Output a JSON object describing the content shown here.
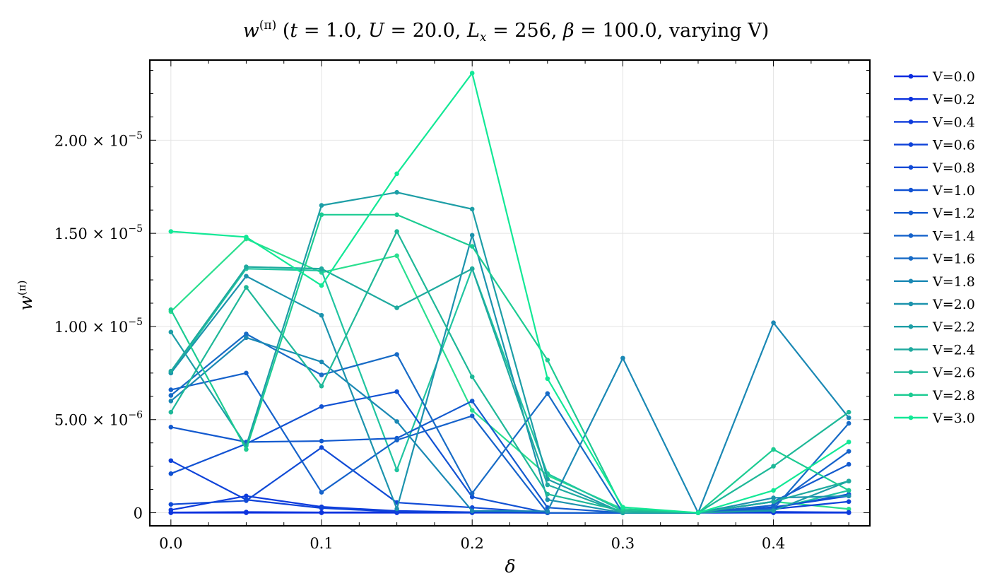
{
  "chart_data": {
    "type": "line",
    "title": "w^{(π)} (t = 1.0, U = 20.0, L_x = 256, β = 100.0, varying V)",
    "title_parts": {
      "w": "w",
      "sup": "(π)",
      "open": " (",
      "t": "t",
      "t_val": " = 1.0, ",
      "U": "U",
      "U_val": " = 20.0, ",
      "L": "L",
      "L_sub": "x",
      "L_val": " = 256, ",
      "beta": "β",
      "beta_val": " = 100.0, varying V)"
    },
    "xlabel": "δ",
    "ylabel": "w^{(π)}",
    "ylabel_parts": {
      "w": "w",
      "sup": "(π)"
    },
    "xlim": [
      -0.014,
      0.464
    ],
    "ylim": [
      -7e-07,
      2.43e-05
    ],
    "grid": true,
    "legend_position": "outside-right",
    "x_ticks": [
      {
        "value": 0.0,
        "label": "0.0"
      },
      {
        "value": 0.1,
        "label": "0.1"
      },
      {
        "value": 0.2,
        "label": "0.2"
      },
      {
        "value": 0.3,
        "label": "0.3"
      },
      {
        "value": 0.4,
        "label": "0.4"
      }
    ],
    "y_ticks": [
      {
        "value": 0,
        "mantissa": "0",
        "exp": ""
      },
      {
        "value": 5e-06,
        "mantissa": "5.00 × 10",
        "exp": "−6"
      },
      {
        "value": 1e-05,
        "mantissa": "1.00 × 10",
        "exp": "−5"
      },
      {
        "value": 1.5e-05,
        "mantissa": "1.50 × 10",
        "exp": "−5"
      },
      {
        "value": 2e-05,
        "mantissa": "2.00 × 10",
        "exp": "−5"
      }
    ],
    "x": [
      0.0,
      0.05,
      0.1,
      0.15,
      0.2,
      0.25,
      0.3,
      0.35,
      0.4,
      0.45
    ],
    "series": [
      {
        "name": "V=0.0",
        "color": "#0a2be0",
        "values": [
          0,
          0,
          0,
          0,
          0,
          0,
          0,
          0,
          0,
          0
        ]
      },
      {
        "name": "V=0.2",
        "color": "#0c33de",
        "values": [
          2e-08,
          4e-08,
          2e-08,
          3e-08,
          2e-08,
          0,
          0,
          0,
          1e-08,
          2e-08
        ]
      },
      {
        "name": "V=0.4",
        "color": "#0d3bdc",
        "values": [
          1.5e-07,
          9e-07,
          3.2e-07,
          1e-07,
          3e-08,
          0,
          0,
          0,
          5e-08,
          2e-08
        ]
      },
      {
        "name": "V=0.6",
        "color": "#0e42d9",
        "values": [
          2.8e-06,
          7e-07,
          2.5e-07,
          6e-08,
          1e-08,
          0,
          0,
          0,
          2e-07,
          6e-07
        ]
      },
      {
        "name": "V=0.8",
        "color": "#104ad6",
        "values": [
          4.5e-07,
          6.5e-07,
          3.5e-06,
          5.5e-07,
          2.8e-07,
          0,
          0,
          0,
          3e-07,
          9e-07
        ]
      },
      {
        "name": "V=1.0",
        "color": "#1152d3",
        "values": [
          2.1e-06,
          3.7e-06,
          5.7e-06,
          6.5e-06,
          8.5e-07,
          0,
          0,
          0,
          2.5e-07,
          1e-06
        ]
      },
      {
        "name": "V=1.2",
        "color": "#135acf",
        "values": [
          4.6e-06,
          3.8e-06,
          3.85e-06,
          4e-06,
          6e-06,
          2.8e-07,
          0,
          0,
          6e-07,
          2.6e-06
        ]
      },
      {
        "name": "V=1.4",
        "color": "#1562cb",
        "values": [
          6.6e-06,
          7.5e-06,
          1.1e-06,
          3.9e-06,
          5.2e-06,
          0,
          0,
          0,
          4e-07,
          3.3e-06
        ]
      },
      {
        "name": "V=1.6",
        "color": "#176bc6",
        "values": [
          6.3e-06,
          9.6e-06,
          7.4e-06,
          8.5e-06,
          1.05e-06,
          6.4e-06,
          0,
          0,
          2e-07,
          4.8e-06
        ]
      },
      {
        "name": "V=1.8",
        "color": "#1a88b4",
        "values": [
          6e-06,
          9.4e-06,
          8.1e-06,
          4.9e-06,
          1e-07,
          8e-08,
          8.3e-06,
          0,
          1.02e-05,
          5.1e-06
        ]
      },
      {
        "name": "V=2.0",
        "color": "#1c93ad",
        "values": [
          7.5e-06,
          1.27e-05,
          1.06e-05,
          2.1e-07,
          1.49e-05,
          7e-07,
          0,
          0,
          8e-07,
          9e-07
        ]
      },
      {
        "name": "V=2.2",
        "color": "#1d9ea6",
        "values": [
          9.7e-06,
          3.6e-06,
          1.65e-05,
          1.72e-05,
          1.63e-05,
          1.8e-06,
          0,
          0,
          1.1e-07,
          1.7e-06
        ]
      },
      {
        "name": "V=2.4",
        "color": "#1faa9f",
        "values": [
          7.6e-06,
          1.32e-05,
          1.31e-05,
          1.1e-05,
          1.31e-05,
          1.5e-06,
          0,
          0,
          6e-07,
          1.7e-06
        ]
      },
      {
        "name": "V=2.6",
        "color": "#1eb898",
        "values": [
          5.4e-06,
          1.21e-05,
          6.8e-06,
          1.51e-05,
          7.3e-06,
          1e-06,
          1e-07,
          0,
          2.5e-06,
          5.4e-06
        ]
      },
      {
        "name": "V=2.8",
        "color": "#1ccb92",
        "values": [
          1.09e-05,
          3.4e-06,
          1.6e-05,
          1.6e-05,
          1.43e-05,
          8.2e-06,
          2e-07,
          0,
          3.4e-06,
          1.2e-06
        ]
      },
      {
        "name": "V=3.0",
        "color": "#12e896",
        "values": [
          1.51e-05,
          1.48e-05,
          1.22e-05,
          1.82e-05,
          2.36e-05,
          7.2e-06,
          3e-07,
          0,
          1.2e-06,
          3.8e-06
        ]
      }
    ],
    "extra_series": [
      {
        "color": "#2adf8f",
        "values": [
          1.08e-05,
          1.47e-05,
          1.29e-05,
          1.38e-05,
          5.5e-06,
          2e-06,
          2e-07,
          0,
          6e-07,
          2e-07
        ]
      },
      {
        "color": "#20c4a0",
        "values": [
          7.5e-06,
          1.31e-05,
          1.3e-05,
          2.3e-06,
          1.31e-05,
          2.1e-06,
          1e-07,
          0,
          2e-07,
          1.2e-06
        ]
      }
    ]
  }
}
